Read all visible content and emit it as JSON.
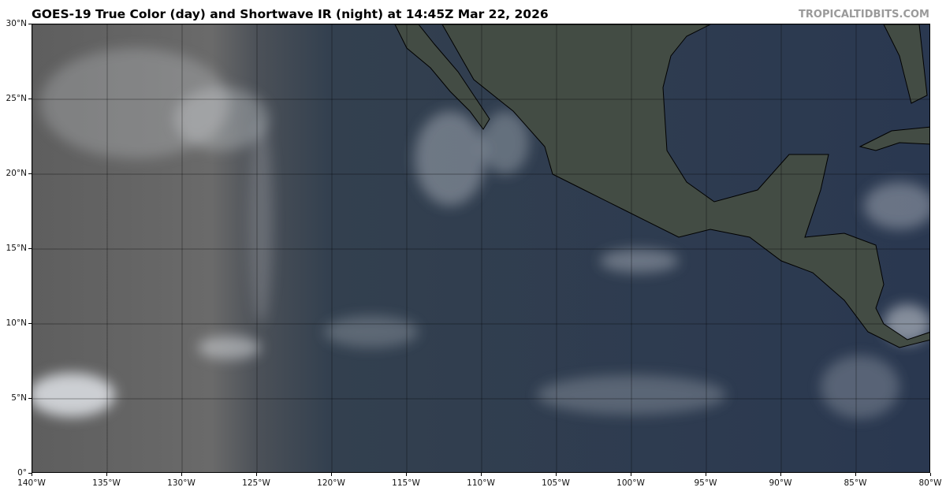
{
  "header": {
    "title": "GOES-19 True Color (day) and Shortwave IR (night) at 14:45Z Mar 22, 2026",
    "brand": "TROPICALTIDBITS.COM"
  },
  "map": {
    "lon_range": [
      -140,
      -80
    ],
    "lat_range": [
      0,
      30
    ],
    "x_ticks": [
      "140°W",
      "135°W",
      "130°W",
      "125°W",
      "120°W",
      "115°W",
      "110°W",
      "105°W",
      "100°W",
      "95°W",
      "90°W",
      "85°W",
      "80°W"
    ],
    "y_ticks": [
      "0°",
      "5°N",
      "10°N",
      "15°N",
      "20°N",
      "25°N",
      "30°N"
    ],
    "colors": {
      "night": "#5a5a5a",
      "ocean": "#2c3a50",
      "land": "#3f4a44",
      "cloud": "#e8ecf0"
    }
  }
}
